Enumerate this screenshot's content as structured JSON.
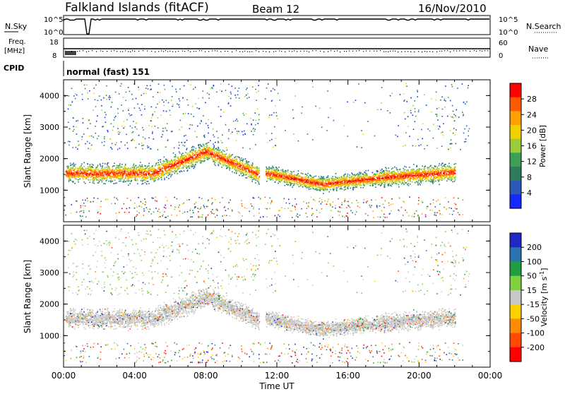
{
  "header": {
    "station": "Falkland Islands (fitACF)",
    "beam": "Beam 12",
    "date": "16/Nov/2010"
  },
  "nsky_panel": {
    "left_label": "N.Sky",
    "left_ticks": [
      "10^5",
      "10^0"
    ],
    "right_label": "N.Search",
    "right_ticks": [
      "10^5",
      "10^0"
    ]
  },
  "freq_panel": {
    "left_label_line1": "Freq.",
    "left_label_line2": "[MHz]",
    "left_ticks": [
      "18",
      "8"
    ],
    "right_label": "Nave",
    "right_ticks": [
      "60",
      "0"
    ]
  },
  "cpid_panel": {
    "label": "CPID",
    "mode": "normal (fast) 151"
  },
  "colors": {
    "power_scale": [
      "#1428ff",
      "#2b59b8",
      "#2e7d5a",
      "#3d9f53",
      "#9bcc3a",
      "#f0d000",
      "#ff9f00",
      "#ff5a00",
      "#ff0000"
    ],
    "velocity_scale": [
      "#ff0000",
      "#ff4a00",
      "#ff8c00",
      "#ffd000",
      "#c8c8c8",
      "#80d040",
      "#1e9e3e",
      "#2a72b0",
      "#1e28c8"
    ]
  },
  "chart_data": [
    {
      "type": "heatmap",
      "quantity": "Power",
      "ylabel": "Slant Range [km]",
      "yticks": [
        "1000",
        "2000",
        "3000",
        "4000"
      ],
      "ylim": [
        0,
        4500
      ],
      "xlim_hours": [
        0,
        24
      ],
      "colorbar_label": "Power [dB]",
      "colorbar_ticks": [
        "4",
        "8",
        "12",
        "16",
        "20",
        "24",
        "28"
      ],
      "features": [
        {
          "time_hours": [
            0.0,
            5.0
          ],
          "range_km": [
            1200,
            2000
          ]
        },
        {
          "time_hours": [
            5.0,
            8.0
          ],
          "range_km": [
            1600,
            2600
          ]
        },
        {
          "time_hours": [
            8.0,
            11.0
          ],
          "range_km": [
            1300,
            2200
          ]
        },
        {
          "time_hours": [
            11.3,
            22.0
          ],
          "range_km": [
            900,
            1800
          ]
        }
      ]
    },
    {
      "type": "heatmap",
      "quantity": "Velocity",
      "ylabel": "Slant Range [km]",
      "yticks": [
        "1000",
        "2000",
        "3000",
        "4000"
      ],
      "ylim": [
        0,
        4500
      ],
      "xlim_hours": [
        0,
        24
      ],
      "xlabel": "Time UT",
      "xticks": [
        "00:00",
        "04:00",
        "08:00",
        "12:00",
        "16:00",
        "20:00",
        "00:00"
      ],
      "colorbar_label": "Velocity [m s",
      "colorbar_label_sup": "-1",
      "colorbar_label_end": "]",
      "colorbar_ticks": [
        "200",
        "100",
        "50",
        "15",
        "-15",
        "-50",
        "-100",
        "-200"
      ]
    }
  ]
}
